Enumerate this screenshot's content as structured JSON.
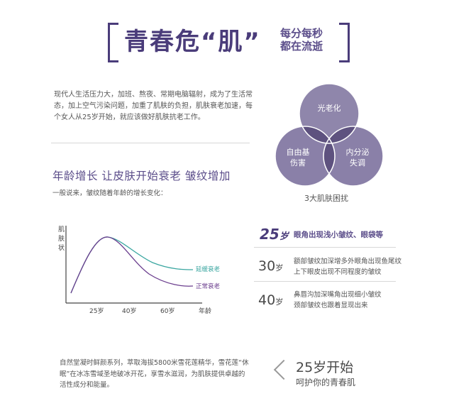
{
  "header": {
    "title": "青春危“肌”",
    "subtitle_line1": "每分每秒",
    "subtitle_line2": "都在流逝"
  },
  "intro": "现代人生活压力大，加班、熬夜、常期电脑辐射，成为了生活常态，加上空气污染问题，加重了肌肤的负担，肌肤衰老加速，每个女人从25岁开始，就应该做好肌肤抗老工作。",
  "venn": {
    "circles": [
      "光老化",
      "自由基伤害",
      "内分泌失调"
    ],
    "circle_lines": {
      "top": "光老化",
      "left_1": "自由基",
      "left_2": "伤害",
      "right_1": "内分泌",
      "right_2": "失调"
    },
    "label": "3大肌肤困扰",
    "colors": {
      "top": "#8f86ab",
      "bottom": "#8a80a8",
      "overlap": "#5e527f"
    }
  },
  "section": {
    "title": "年龄增长  让皮肤开始衰老  皱纹增加",
    "subtitle": "一般说来，皱纹随着年龄的增长变化："
  },
  "chart_data": {
    "type": "line",
    "ylabel": "肌肤状态",
    "xlabel": "年龄",
    "x_ticks": [
      "25岁",
      "40岁",
      "60岁"
    ],
    "series": [
      {
        "name": "延缓衰老",
        "color": "#3aa6a0"
      },
      {
        "name": "正常衰老",
        "color": "#6b3e8e"
      }
    ]
  },
  "ages": [
    {
      "age": "25",
      "unit": "岁",
      "lines": [
        "眼角出现浅小皱纹、眼袋等"
      ]
    },
    {
      "age": "30",
      "unit": "岁",
      "lines": [
        "额部皱纹加深增多外眼角出现鱼尾纹",
        "上下眼皮出现不同程度的皱纹"
      ]
    },
    {
      "age": "40",
      "unit": "岁",
      "lines": [
        "鼻唇沟加深嘴角出现细小皱纹",
        "颈部皱纹也跟着显现出来"
      ]
    }
  ],
  "bottom": {
    "text": "自然堂凝时鲜颜系列，萃取海拔5800米雪花莲精华，雪花莲“休眠”在冰冻雪域圣地破冰开花，享雪水滋润，为肌肤提供卓越的活性成分和能量。",
    "title": "25岁开始",
    "subtitle": "呵护你的青春肌"
  }
}
